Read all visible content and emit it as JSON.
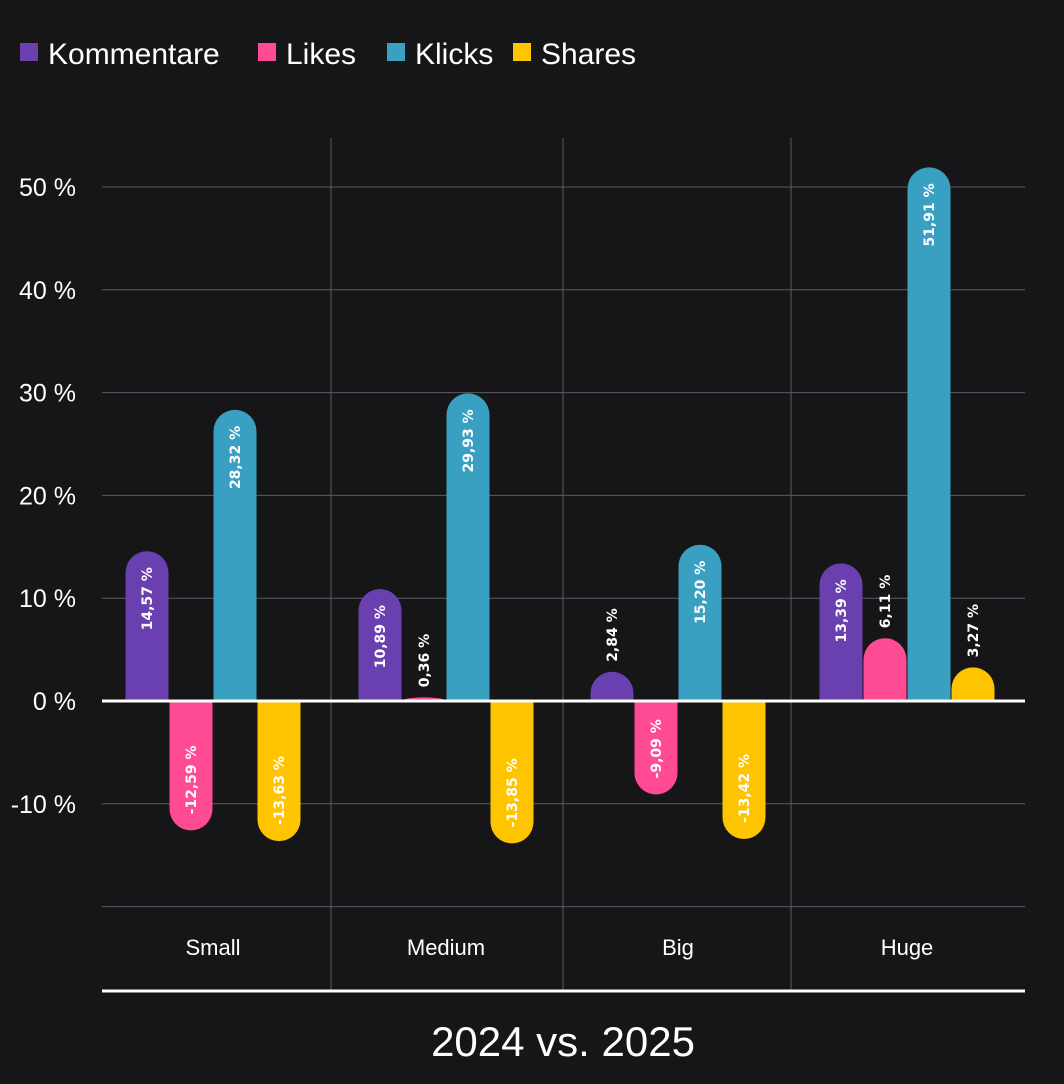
{
  "chart_data": {
    "type": "bar",
    "title": "2024 vs. 2025",
    "categories": [
      "Small",
      "Medium",
      "Big",
      "Huge"
    ],
    "series": [
      {
        "name": "Kommentare",
        "color": "#6a3fb0",
        "values": [
          14.57,
          10.89,
          2.84,
          13.39
        ],
        "labels": [
          "14,57 %",
          "10,89 %",
          "2,84 %",
          "13,39 %"
        ]
      },
      {
        "name": "Likes",
        "color": "#ff4b93",
        "values": [
          -12.59,
          0.36,
          -9.09,
          6.11
        ],
        "labels": [
          "-12,59 %",
          "0,36 %",
          "-9,09 %",
          "6,11 %"
        ]
      },
      {
        "name": "Klicks",
        "color": "#3aa0c2",
        "values": [
          28.32,
          29.93,
          15.2,
          51.91
        ],
        "labels": [
          "28,32 %",
          "29,93 %",
          "15,20 %",
          "51,91 %"
        ]
      },
      {
        "name": "Shares",
        "color": "#ffc400",
        "values": [
          -13.63,
          -13.85,
          -13.42,
          3.27
        ],
        "labels": [
          "-13,63 %",
          "-13,85 %",
          "-13,42 %",
          "3,27 %"
        ]
      }
    ],
    "y_ticks": [
      50,
      40,
      30,
      20,
      10,
      0,
      -10
    ],
    "y_tick_labels": [
      "50 %",
      "40 %",
      "30 %",
      "20 %",
      "10 %",
      "0 %",
      "-10 %"
    ],
    "ylim": [
      -20,
      50
    ],
    "grid": true,
    "legend": "top-left"
  }
}
